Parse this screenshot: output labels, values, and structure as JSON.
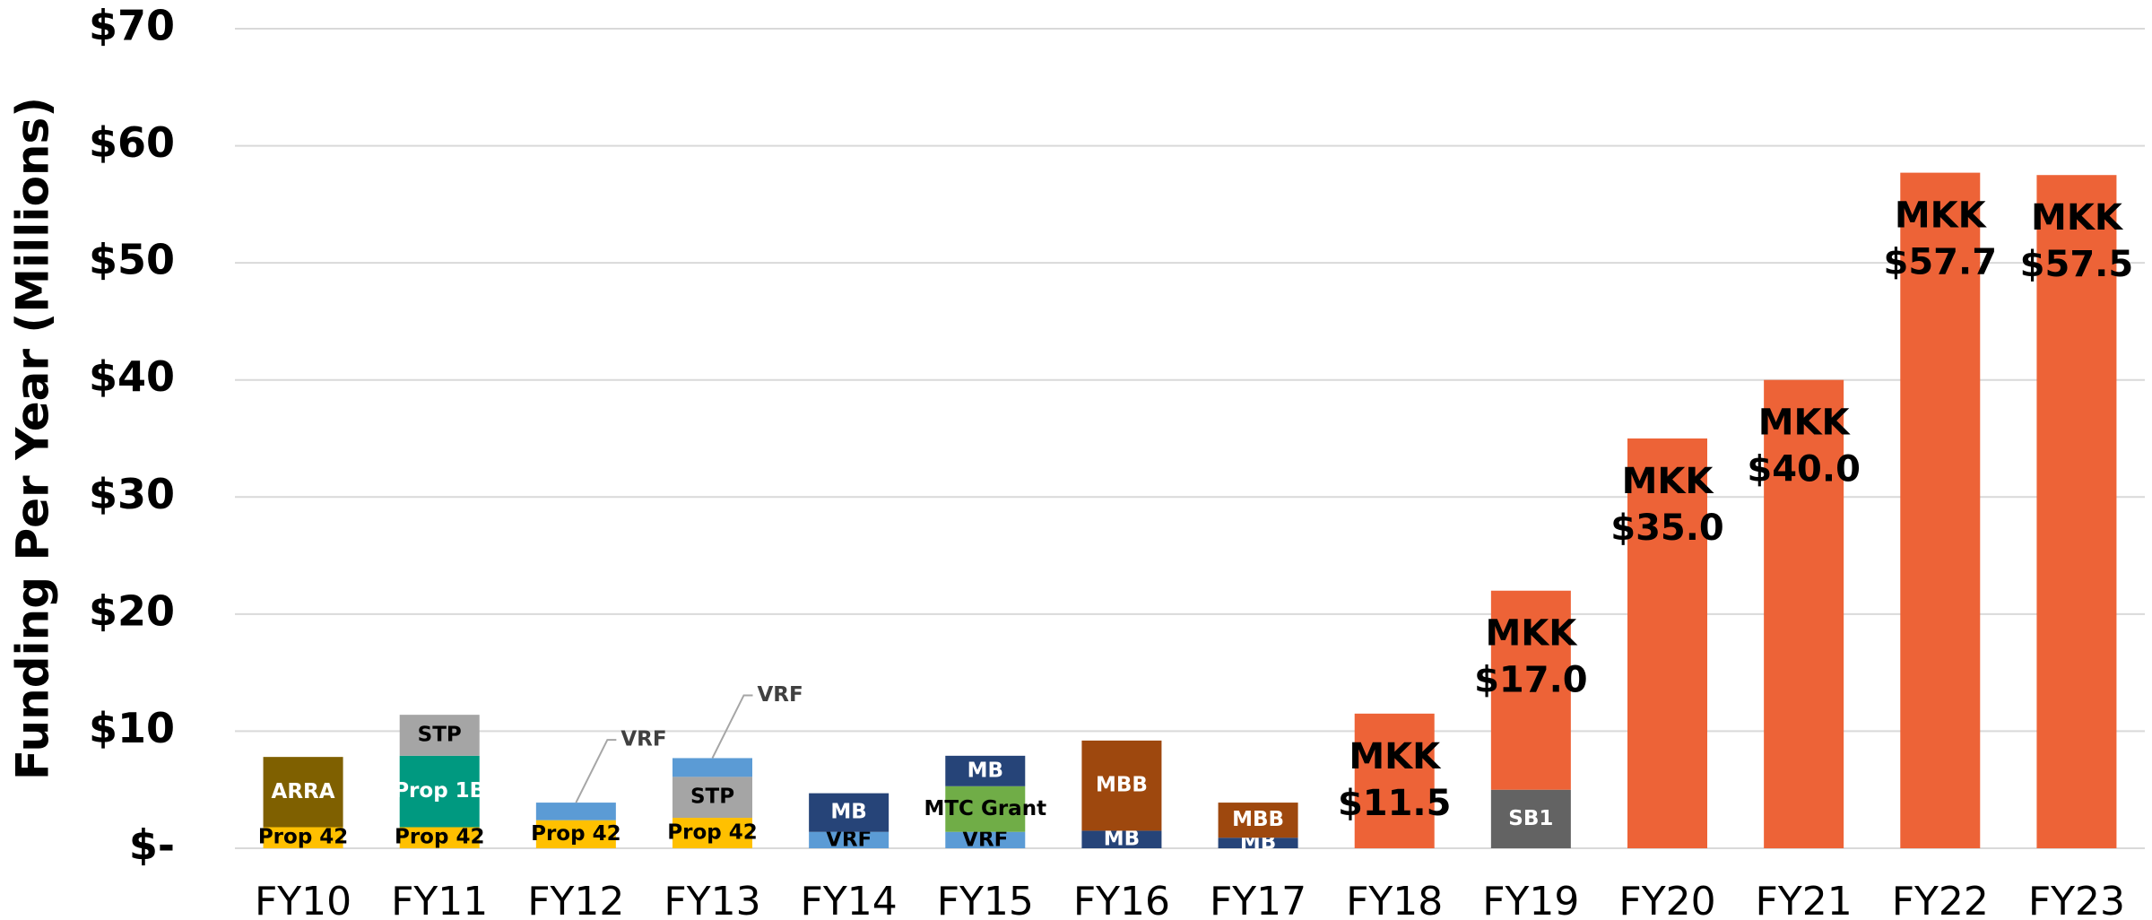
{
  "chart_data": {
    "type": "stacked_bar",
    "y_axis_label": "Funding Per Year (Millions)",
    "categories": [
      "FY10",
      "FY11",
      "FY12",
      "FY13",
      "FY14",
      "FY15",
      "FY16",
      "FY17",
      "FY18",
      "FY19",
      "FY20",
      "FY21",
      "FY22",
      "FY23"
    ],
    "series": [
      {
        "name": "Prop 42",
        "color": "#FFC000",
        "values": [
          1.8,
          1.8,
          2.4,
          2.6,
          null,
          null,
          null,
          null,
          null,
          null,
          null,
          null,
          null,
          null
        ]
      },
      {
        "name": "ARRA",
        "color": "#7F6000",
        "values": [
          6.0,
          null,
          null,
          null,
          null,
          null,
          null,
          null,
          null,
          null,
          null,
          null,
          null,
          null
        ]
      },
      {
        "name": "Prop 1B",
        "color": "#009980",
        "values": [
          null,
          6.1,
          null,
          null,
          null,
          null,
          null,
          null,
          null,
          null,
          null,
          null,
          null,
          null
        ]
      },
      {
        "name": "VRF",
        "color": "#5B9BD5",
        "values": [
          null,
          null,
          1.5,
          null,
          1.4,
          1.4,
          null,
          null,
          null,
          null,
          null,
          null,
          null,
          null
        ]
      },
      {
        "name": "STP",
        "color": "#A5A5A5",
        "values": [
          null,
          3.5,
          null,
          3.5,
          null,
          null,
          null,
          null,
          null,
          null,
          null,
          null,
          null,
          null
        ]
      },
      {
        "name": "VRF",
        "color": "#5B9BD5",
        "values": [
          null,
          null,
          null,
          1.6,
          null,
          null,
          null,
          null,
          null,
          null,
          null,
          null,
          null,
          null
        ]
      },
      {
        "name": "MB",
        "color": "#264478",
        "values": [
          null,
          null,
          null,
          null,
          3.3,
          null,
          1.5,
          0.9,
          null,
          null,
          null,
          null,
          null,
          null
        ]
      },
      {
        "name": "MTC Grant",
        "color": "#70AD47",
        "values": [
          null,
          null,
          null,
          null,
          null,
          3.9,
          null,
          null,
          null,
          null,
          null,
          null,
          null,
          null
        ]
      },
      {
        "name": "MB",
        "color": "#264478",
        "values": [
          null,
          null,
          null,
          null,
          null,
          2.6,
          null,
          null,
          null,
          null,
          null,
          null,
          null,
          null
        ]
      },
      {
        "name": "MBB",
        "color": "#9E480E",
        "values": [
          null,
          null,
          null,
          null,
          null,
          null,
          7.7,
          3.0,
          null,
          null,
          null,
          null,
          null,
          null
        ]
      },
      {
        "name": "SB1",
        "color": "#636363",
        "values": [
          null,
          null,
          null,
          null,
          null,
          null,
          null,
          null,
          null,
          5.0,
          null,
          null,
          null,
          null
        ]
      },
      {
        "name": "MKK",
        "color": "#ED6337",
        "values": [
          null,
          null,
          null,
          null,
          null,
          null,
          null,
          null,
          11.5,
          17.0,
          35.0,
          40.0,
          57.7,
          57.5
        ],
        "value_labels": [
          null,
          null,
          null,
          null,
          null,
          null,
          null,
          null,
          "$11.5",
          "$17.0",
          "$35.0",
          "$40.0",
          "$57.7",
          "$57.5"
        ]
      }
    ],
    "ylim": [
      0,
      70
    ],
    "yticks": [
      {
        "value": 0,
        "label": "$-"
      },
      {
        "value": 10,
        "label": "$10"
      },
      {
        "value": 20,
        "label": "$20"
      },
      {
        "value": 30,
        "label": "$30"
      },
      {
        "value": 40,
        "label": "$40"
      },
      {
        "value": 50,
        "label": "$50"
      },
      {
        "value": 60,
        "label": "$60"
      },
      {
        "value": 70,
        "label": "$70"
      }
    ],
    "grid": true
  }
}
